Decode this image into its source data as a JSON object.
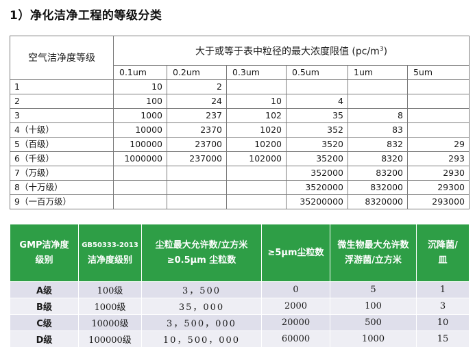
{
  "heading": "1）净化洁净工程的等级分类",
  "table1": {
    "left_header": "空气洁净度等级",
    "main_header_prefix": "大于或等于表中粒径的最大浓度限值 (pc/m",
    "main_header_sup": "3",
    "main_header_suffix": ")",
    "sizes": [
      "0.1um",
      "0.2um",
      "0.3um",
      "0.5um",
      "1um",
      "5um"
    ],
    "rows": [
      {
        "label": "1",
        "values": [
          "10",
          "2",
          "",
          "",
          "",
          ""
        ]
      },
      {
        "label": "2",
        "values": [
          "100",
          "24",
          "10",
          "4",
          "",
          ""
        ]
      },
      {
        "label": "3",
        "values": [
          "1000",
          "237",
          "102",
          "35",
          "8",
          ""
        ]
      },
      {
        "label": "4（十级）",
        "values": [
          "10000",
          "2370",
          "1020",
          "352",
          "83",
          ""
        ]
      },
      {
        "label": "5（百级）",
        "values": [
          "100000",
          "23700",
          "10200",
          "3520",
          "832",
          "29"
        ]
      },
      {
        "label": "6（千级）",
        "values": [
          "1000000",
          "237000",
          "102000",
          "35200",
          "8320",
          "293"
        ]
      },
      {
        "label": "7（万级）",
        "values": [
          "",
          "",
          "",
          "352000",
          "83200",
          "2930"
        ]
      },
      {
        "label": "8（十万级）",
        "values": [
          "",
          "",
          "",
          "3520000",
          "832000",
          "29300"
        ]
      },
      {
        "label": "9（一百万级）",
        "values": [
          "",
          "",
          "",
          "35200000",
          "8320000",
          "293000"
        ]
      }
    ]
  },
  "table2": {
    "headers": [
      [
        "GMP洁净度",
        "级别"
      ],
      [
        "GB50333-2013",
        "洁净度级别"
      ],
      [
        "尘粒最大允许数/立方米",
        "≥0.5μm 尘粒数"
      ],
      [
        "≥5μm尘粒数"
      ],
      [
        "微生物最大允许数",
        "浮游菌/立方米"
      ],
      [
        "沉降菌/",
        "皿"
      ]
    ],
    "rows": [
      [
        "A级",
        "100级",
        "3，500",
        "0",
        "5",
        "1"
      ],
      [
        "B级",
        "1000级",
        "35，000",
        "2000",
        "100",
        "3"
      ],
      [
        "C级",
        "10000级",
        "3，500，000",
        "20000",
        "500",
        "10"
      ],
      [
        "D级",
        "100000级",
        "10，500，000",
        "60000",
        "1000",
        "15"
      ]
    ]
  }
}
